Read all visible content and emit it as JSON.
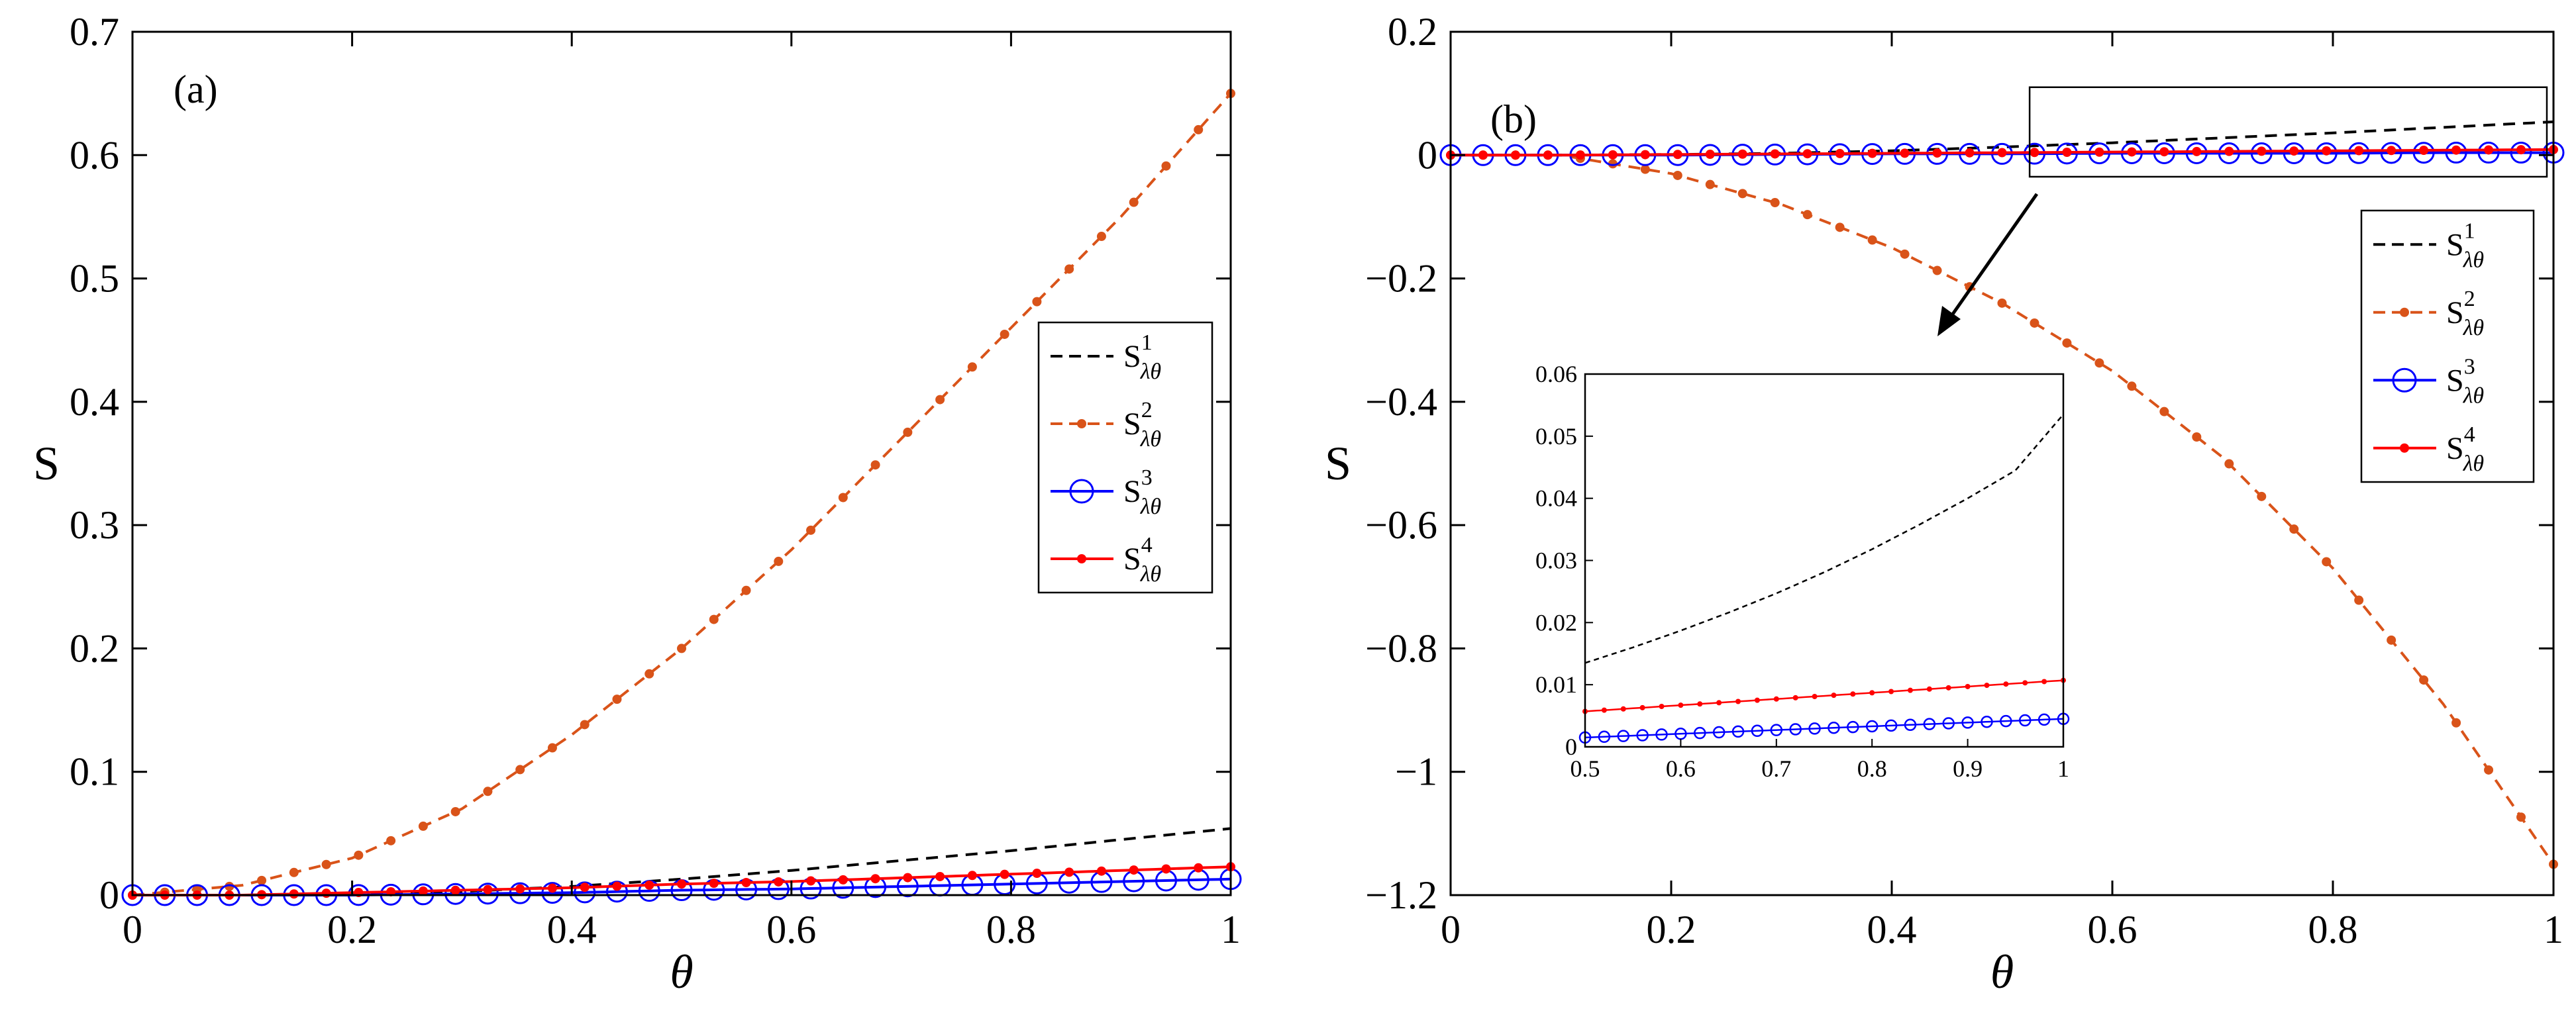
{
  "colors": {
    "s1": "#000000",
    "s2": "#D95319",
    "s3": "#0000FF",
    "s4": "#FF0000",
    "arrow": "#000000"
  },
  "chart_data": [
    {
      "panel": "(a)",
      "type": "line",
      "xlabel": "θ",
      "ylabel": "S",
      "xlim": [
        0,
        1
      ],
      "ylim": [
        0,
        0.7
      ],
      "xticks": [
        0,
        0.2,
        0.4,
        0.6,
        0.8,
        1
      ],
      "xtick_labels": [
        "0",
        "0.2",
        "0.4",
        "0.6",
        "0.8",
        "1"
      ],
      "yticks": [
        0,
        0.1,
        0.2,
        0.3,
        0.4,
        0.5,
        0.6,
        0.7
      ],
      "ytick_labels": [
        "0",
        "0.1",
        "0.2",
        "0.3",
        "0.4",
        "0.5",
        "0.6",
        "0.7"
      ],
      "grid": false,
      "legend_position": "right-middle",
      "x": [
        0,
        0.1,
        0.2,
        0.3,
        0.4,
        0.5,
        0.6,
        0.7,
        0.8,
        0.9,
        1.0
      ],
      "series": [
        {
          "name": "S¹λθ",
          "base": "S",
          "sup": "1",
          "sub": "λθ",
          "style": "dashed",
          "marker": "none",
          "values": [
            0,
            0,
            0.001,
            0.003,
            0.007,
            0.013,
            0.02,
            0.028,
            0.036,
            0.045,
            0.054
          ]
        },
        {
          "name": "S²λθ",
          "base": "S",
          "sup": "2",
          "sub": "λθ",
          "style": "dashed",
          "marker": "dot",
          "values": [
            0,
            0.008,
            0.03,
            0.07,
            0.13,
            0.2,
            0.28,
            0.37,
            0.46,
            0.55,
            0.65
          ]
        },
        {
          "name": "S³λθ",
          "base": "S",
          "sup": "3",
          "sub": "λθ",
          "style": "solid",
          "marker": "circle",
          "values": [
            0,
            0,
            0,
            0.001,
            0.002,
            0.004,
            0.005,
            0.007,
            0.009,
            0.011,
            0.013
          ]
        },
        {
          "name": "S⁴λθ",
          "base": "S",
          "sup": "4",
          "sub": "λθ",
          "style": "solid",
          "marker": "dot",
          "values": [
            0,
            0,
            0.002,
            0.004,
            0.006,
            0.009,
            0.011,
            0.014,
            0.017,
            0.02,
            0.023
          ]
        }
      ]
    },
    {
      "panel": "(b)",
      "type": "line",
      "xlabel": "θ",
      "ylabel": "S",
      "xlim": [
        0,
        1
      ],
      "ylim": [
        -1.2,
        0.2
      ],
      "xticks": [
        0,
        0.2,
        0.4,
        0.6,
        0.8,
        1
      ],
      "xtick_labels": [
        "0",
        "0.2",
        "0.4",
        "0.6",
        "0.8",
        "1"
      ],
      "yticks": [
        -1.2,
        -1,
        -0.8,
        -0.6,
        -0.4,
        -0.2,
        0,
        0.2
      ],
      "ytick_labels": [
        "−1.2",
        "−1",
        "−0.8",
        "−0.6",
        "−0.4",
        "−0.2",
        "0",
        "0.2"
      ],
      "grid": false,
      "legend_position": "right-upper",
      "x": [
        0,
        0.1,
        0.2,
        0.3,
        0.4,
        0.5,
        0.6,
        0.7,
        0.8,
        0.9,
        1.0
      ],
      "series": [
        {
          "name": "S¹λθ",
          "base": "S",
          "sup": "1",
          "sub": "λθ",
          "style": "dashed",
          "marker": "none",
          "values": [
            0,
            0,
            0.001,
            0.003,
            0.007,
            0.013,
            0.02,
            0.028,
            0.036,
            0.045,
            0.054
          ]
        },
        {
          "name": "S²λθ",
          "base": "S",
          "sup": "2",
          "sub": "λθ",
          "style": "dashed",
          "marker": "dot",
          "values": [
            0,
            0,
            -0.03,
            -0.08,
            -0.15,
            -0.24,
            -0.35,
            -0.49,
            -0.67,
            -0.89,
            -1.15
          ]
        },
        {
          "name": "S³λθ",
          "base": "S",
          "sup": "3",
          "sub": "λθ",
          "style": "solid",
          "marker": "circle",
          "values": [
            0,
            0,
            0,
            0.001,
            0.002,
            0.002,
            0.003,
            0.003,
            0.003,
            0.004,
            0.004
          ]
        },
        {
          "name": "S⁴λθ",
          "base": "S",
          "sup": "4",
          "sub": "λθ",
          "style": "solid",
          "marker": "dot",
          "values": [
            0,
            0,
            0.001,
            0.002,
            0.003,
            0.004,
            0.005,
            0.006,
            0.007,
            0.008,
            0.009
          ]
        }
      ],
      "zoom_box": {
        "x": [
          0.525,
          1.0
        ],
        "y": [
          -0.005,
          0.065
        ]
      },
      "inset": {
        "xlim": [
          0.5,
          1
        ],
        "ylim": [
          0,
          0.06
        ],
        "xticks": [
          0.5,
          0.6,
          0.7,
          0.8,
          0.9,
          1
        ],
        "xtick_labels": [
          "0.5",
          "0.6",
          "0.7",
          "0.8",
          "0.9",
          "1"
        ],
        "yticks": [
          0,
          0.01,
          0.02,
          0.03,
          0.04,
          0.05,
          0.06
        ],
        "ytick_labels": [
          "0",
          "0.01",
          "0.02",
          "0.03",
          "0.04",
          "0.05",
          "0.06"
        ],
        "x": [
          0.5,
          0.55,
          0.6,
          0.65,
          0.7,
          0.75,
          0.8,
          0.85,
          0.9,
          0.95,
          1.0
        ],
        "series": [
          {
            "name": "S¹λθ",
            "style": "dashed",
            "marker": "none",
            "values": [
              0.0135,
              0.016,
              0.0187,
              0.0216,
              0.0247,
              0.0281,
              0.0318,
              0.0358,
              0.04,
              0.0445,
              0.0535
            ]
          },
          {
            "name": "S³λθ",
            "style": "solid",
            "marker": "circle",
            "values": [
              0.0015,
              0.0018,
              0.0021,
              0.0024,
              0.0027,
              0.003,
              0.0033,
              0.0036,
              0.0039,
              0.0042,
              0.0045
            ]
          },
          {
            "name": "S⁴λθ",
            "style": "solid",
            "marker": "dot",
            "values": [
              0.0057,
              0.0062,
              0.0067,
              0.0072,
              0.0077,
              0.0082,
              0.0087,
              0.0092,
              0.0097,
              0.0102,
              0.0107
            ]
          }
        ]
      }
    }
  ]
}
